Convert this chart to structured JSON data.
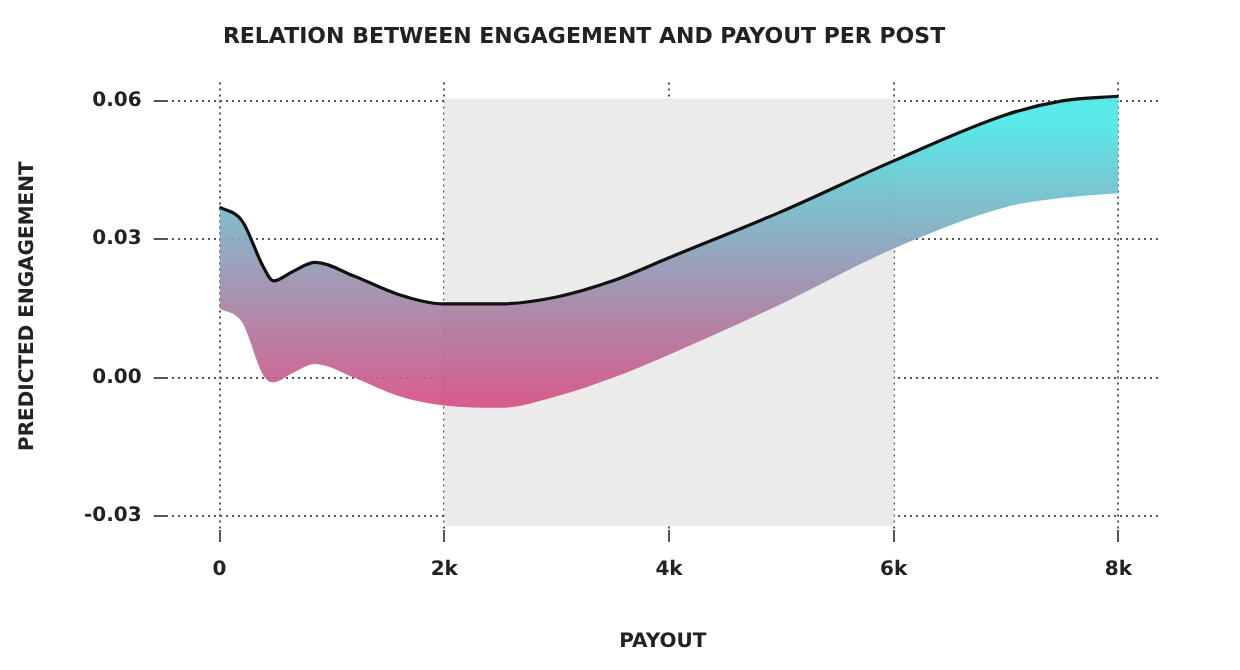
{
  "chart_data": {
    "type": "line",
    "title": "RELATION BETWEEN ENGAGEMENT AND PAYOUT PER POST",
    "xlabel": "PAYOUT",
    "ylabel": "PREDICTED ENGAGEMENT",
    "x": [
      0,
      200,
      390,
      480,
      650,
      850,
      1200,
      1600,
      2000,
      2500,
      3000,
      3500,
      4000,
      5000,
      6000,
      7000,
      7500,
      8000
    ],
    "series": [
      {
        "color": "#111111",
        "values": [
          0.037,
          0.034,
          0.024,
          0.021,
          0.023,
          0.025,
          0.022,
          0.018,
          0.016,
          0.016,
          0.0175,
          0.021,
          0.026,
          0.036,
          0.047,
          0.057,
          0.06,
          0.061
        ],
        "upper": [
          0.037,
          0.034,
          0.024,
          0.021,
          0.023,
          0.025,
          0.022,
          0.018,
          0.016,
          0.016,
          0.0175,
          0.021,
          0.026,
          0.036,
          0.047,
          0.057,
          0.06,
          0.061
        ],
        "lower": [
          0.015,
          0.012,
          0.0005,
          -0.001,
          0.001,
          0.003,
          0.0,
          -0.004,
          -0.006,
          -0.0065,
          -0.004,
          0.0,
          0.005,
          0.016,
          0.028,
          0.037,
          0.039,
          0.04
        ]
      }
    ],
    "xlim": [
      -480,
      8370
    ],
    "ylim": [
      -0.033,
      0.064
    ],
    "xticks": [
      0,
      {
        "value": 2000,
        "label": "2k"
      },
      {
        "value": 4000,
        "label": "4k"
      },
      {
        "value": 6000,
        "label": "6k"
      },
      {
        "value": 8000,
        "label": "8k"
      }
    ],
    "yticks": [
      -0.03,
      {
        "value": 0,
        "label": "0.00"
      },
      0.03,
      0.06
    ],
    "bands": [
      {
        "axis": "x",
        "from": 2000,
        "to": 6000,
        "color": "#ebebeb"
      }
    ],
    "grid": true,
    "legend": false,
    "marker": "none",
    "line_style": "solid"
  }
}
